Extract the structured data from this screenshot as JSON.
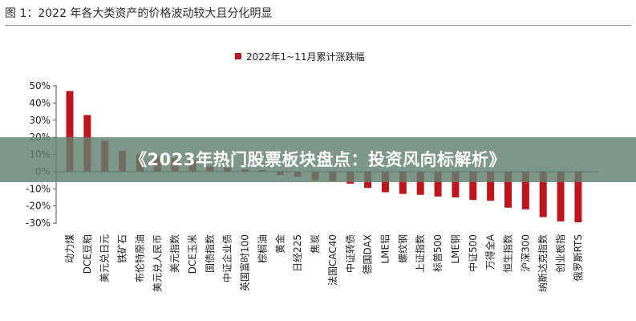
{
  "figure_title": "图 1：2022 年各大类资产的价格波动较大且分化明显",
  "banner": {
    "text": "《2023年热门股票板块盘点：投资风向标解析》"
  },
  "colors": {
    "bar": "#c0161b",
    "axis": "#555555",
    "text": "#222222"
  },
  "chart_data": {
    "type": "bar",
    "legend_position": "top",
    "grid": false,
    "ylim": [
      -30,
      50
    ],
    "yticks": [
      50,
      40,
      30,
      20,
      10,
      0,
      -10,
      -20,
      -30
    ],
    "ytick_labels": [
      "50%",
      "40%",
      "30%",
      "20%",
      "10%",
      "0%",
      "-10%",
      "-20%",
      "-30%"
    ],
    "categories": [
      "动力煤",
      "DCE豆粕",
      "美元兑日元",
      "铁矿石",
      "布伦特原油",
      "美元兑人民币",
      "美元指数",
      "DCE玉米",
      "国债指数",
      "中证企业债",
      "英国富时100",
      "棕榈油",
      "黄金",
      "日经225",
      "焦炭",
      "法国CAC40",
      "中证转债",
      "德国DAX",
      "LME铝",
      "螺纹钢",
      "上证指数",
      "标普500",
      "LME铜",
      "中证500",
      "万得全A",
      "恒生指数",
      "沪深300",
      "纳斯达克指数",
      "创业板指",
      "俄罗斯RTS"
    ],
    "series": [
      {
        "name": "2022年1~11月累计涨跌幅",
        "color": "#c0161b",
        "values": [
          47,
          33,
          18,
          12,
          10,
          9,
          8,
          7,
          3,
          2.5,
          1.5,
          1,
          -2,
          -3,
          -5,
          -5.5,
          -7,
          -9.5,
          -12,
          -13,
          -13.5,
          -14.5,
          -15,
          -16.5,
          -17,
          -21,
          -22,
          -26.5,
          -29,
          -29.5
        ]
      }
    ]
  }
}
